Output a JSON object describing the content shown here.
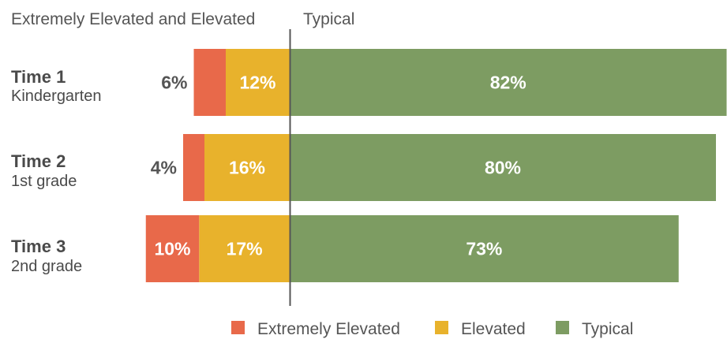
{
  "header": {
    "left_label": "Extremely Elevated and Elevated",
    "right_label": "Typical"
  },
  "chart_data": {
    "type": "bar",
    "orientation": "horizontal",
    "stacked": true,
    "diverging": true,
    "categories": [
      {
        "title": "Time 1",
        "subtitle": "Kindergarten"
      },
      {
        "title": "Time 2",
        "subtitle": "1st grade"
      },
      {
        "title": "Time 3",
        "subtitle": "2nd grade"
      }
    ],
    "series": [
      {
        "name": "Extremely Elevated",
        "color": "#E8694A",
        "values": [
          6,
          4,
          10
        ],
        "side": "left"
      },
      {
        "name": "Elevated",
        "color": "#E8B22C",
        "values": [
          12,
          16,
          17
        ],
        "side": "left"
      },
      {
        "name": "Typical",
        "color": "#7D9C62",
        "values": [
          82,
          80,
          73
        ],
        "side": "right"
      }
    ],
    "value_suffix": "%",
    "legend_position": "bottom",
    "grid": false
  }
}
